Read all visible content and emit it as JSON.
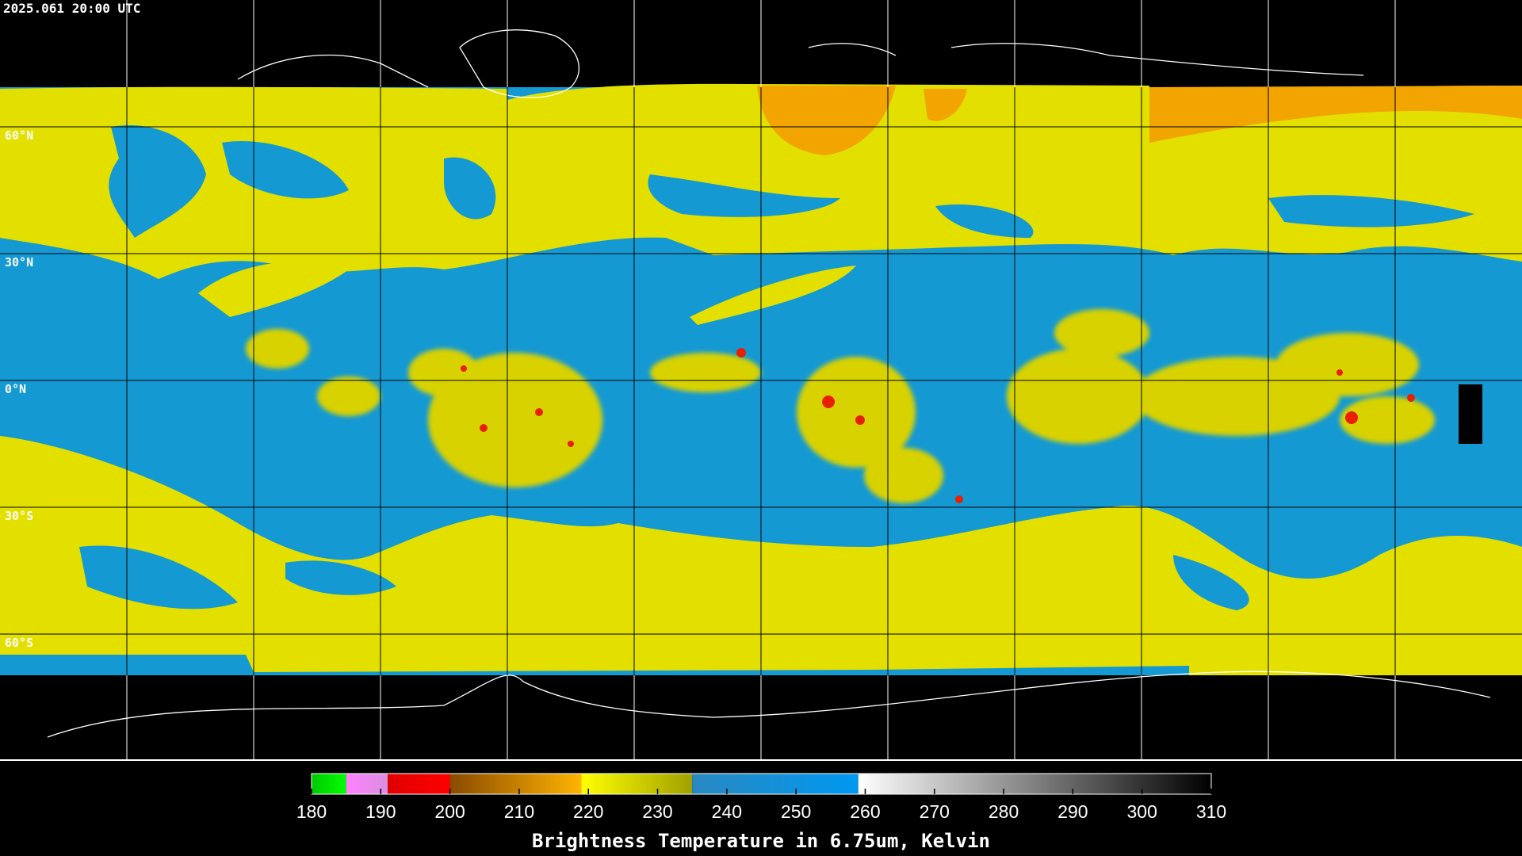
{
  "timestamp": "2025.061 20:00 UTC",
  "latitude_labels": [
    "60°N",
    "30°N",
    "0°N",
    "30°S",
    "60°S"
  ],
  "colorbar": {
    "range": [
      180,
      310
    ],
    "ticks": [
      180,
      190,
      200,
      210,
      220,
      230,
      240,
      250,
      260,
      270,
      280,
      290,
      300,
      310
    ],
    "segments": [
      {
        "from": 180,
        "to": 185,
        "colors": [
          "#00c800",
          "#00ff00"
        ]
      },
      {
        "from": 185,
        "to": 191,
        "colors": [
          "#ff80ff",
          "#d890e0"
        ]
      },
      {
        "from": 191,
        "to": 200,
        "colors": [
          "#e00000",
          "#ff0000"
        ]
      },
      {
        "from": 200,
        "to": 219,
        "colors": [
          "#8a4a00",
          "#ffb400"
        ]
      },
      {
        "from": 219,
        "to": 235,
        "colors": [
          "#ffff00",
          "#a0a000"
        ]
      },
      {
        "from": 235,
        "to": 259,
        "colors": [
          "#2a88c0",
          "#0098f0"
        ]
      },
      {
        "from": 259,
        "to": 310,
        "colors": [
          "#ffffff",
          "#000000"
        ]
      }
    ],
    "label": "Brightness Temperature in 6.75um, Kelvin"
  }
}
